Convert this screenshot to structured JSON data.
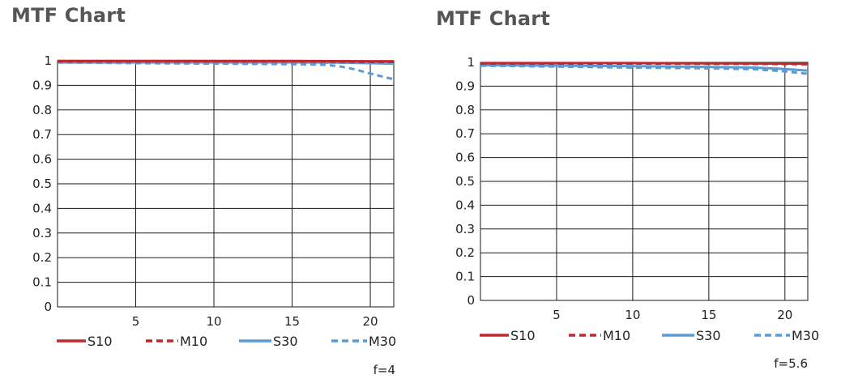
{
  "charts": [
    {
      "title": "MTF Chart",
      "aperture_label": "f=4",
      "chart_data": {
        "type": "line",
        "title": "MTF Chart",
        "subtitle": "f=4",
        "xlabel": "",
        "ylabel": "",
        "xlim": [
          0,
          21.5
        ],
        "ylim": [
          0,
          1
        ],
        "xticks": [
          5,
          10,
          15,
          20
        ],
        "yticks": [
          0,
          0.1,
          0.2,
          0.3,
          0.4,
          0.5,
          0.6,
          0.7,
          0.8,
          0.9,
          1
        ],
        "ytick_labels": [
          "0",
          "0.1",
          "0.2",
          "0.3",
          "0.4",
          "0.5",
          "0.6",
          "0.7",
          "0.8",
          "0.9",
          "1"
        ],
        "grid": true,
        "legend_position": "bottom",
        "series": [
          {
            "name": "S10",
            "color": "#c1272d",
            "style": "solid",
            "x": [
              0,
              5,
              10,
              15,
              20,
              21.5
            ],
            "y": [
              0.999,
              0.999,
              0.999,
              0.999,
              0.998,
              0.998
            ]
          },
          {
            "name": "M10",
            "color": "#c1272d",
            "style": "dashed",
            "x": [
              0,
              5,
              10,
              15,
              20,
              21.5
            ],
            "y": [
              0.997,
              0.997,
              0.997,
              0.997,
              0.995,
              0.995
            ]
          },
          {
            "name": "S30",
            "color": "#5b9bd5",
            "style": "solid",
            "x": [
              0,
              5,
              10,
              15,
              18,
              20,
              21.5
            ],
            "y": [
              0.993,
              0.993,
              0.993,
              0.993,
              0.992,
              0.99,
              0.988
            ]
          },
          {
            "name": "M30",
            "color": "#5b9bd5",
            "style": "dashed",
            "x": [
              0,
              5,
              10,
              15,
              17,
              18,
              19,
              20,
              21,
              21.5
            ],
            "y": [
              0.993,
              0.99,
              0.988,
              0.986,
              0.984,
              0.978,
              0.965,
              0.948,
              0.932,
              0.925
            ]
          }
        ]
      }
    },
    {
      "title": "MTF Chart",
      "aperture_label": "f=5.6",
      "chart_data": {
        "type": "line",
        "title": "MTF Chart",
        "subtitle": "f=5.6",
        "xlabel": "",
        "ylabel": "",
        "xlim": [
          0,
          21.5
        ],
        "ylim": [
          0,
          1
        ],
        "xticks": [
          5,
          10,
          15,
          20
        ],
        "yticks": [
          0,
          0.1,
          0.2,
          0.3,
          0.4,
          0.5,
          0.6,
          0.7,
          0.8,
          0.9,
          1
        ],
        "ytick_labels": [
          "0",
          "0.1",
          "0.2",
          "0.3",
          "0.4",
          "0.5",
          "0.6",
          "0.7",
          "0.8",
          "0.9",
          "1"
        ],
        "grid": true,
        "legend_position": "bottom",
        "series": [
          {
            "name": "S10",
            "color": "#c1272d",
            "style": "solid",
            "x": [
              0,
              5,
              10,
              15,
              20,
              21.5
            ],
            "y": [
              0.997,
              0.997,
              0.997,
              0.996,
              0.995,
              0.994
            ]
          },
          {
            "name": "M10",
            "color": "#c1272d",
            "style": "dashed",
            "x": [
              0,
              5,
              10,
              15,
              20,
              21.5
            ],
            "y": [
              0.995,
              0.995,
              0.995,
              0.994,
              0.993,
              0.992
            ]
          },
          {
            "name": "S30",
            "color": "#5b9bd5",
            "style": "solid",
            "x": [
              0,
              5,
              10,
              15,
              18,
              20,
              21.5
            ],
            "y": [
              0.988,
              0.986,
              0.984,
              0.981,
              0.978,
              0.972,
              0.965
            ]
          },
          {
            "name": "M30",
            "color": "#5b9bd5",
            "style": "dashed",
            "x": [
              0,
              5,
              10,
              15,
              18,
              20,
              21.5
            ],
            "y": [
              0.986,
              0.982,
              0.978,
              0.975,
              0.971,
              0.962,
              0.952
            ]
          }
        ]
      }
    }
  ]
}
